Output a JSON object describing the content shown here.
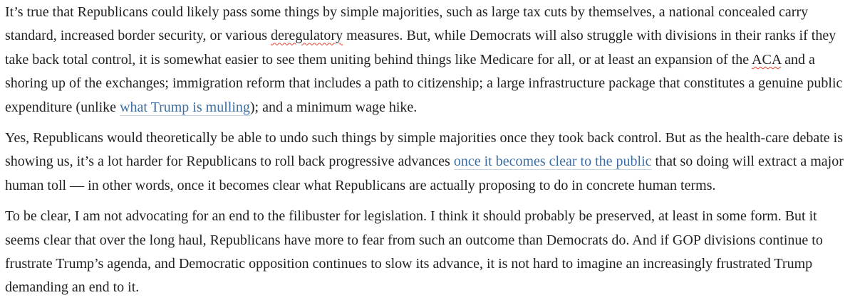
{
  "page": {
    "background_color": "#ffffff",
    "text_color": "#222222",
    "link_color": "#3b6da1",
    "link_underline_color": "#c3d4e2",
    "spellcheck_squiggle_color": "#e2402b"
  },
  "article": {
    "paragraphs": [
      {
        "segments": [
          {
            "type": "text",
            "text": "It’s true that Republicans could likely pass some things by simple majorities, such as large tax cuts by themselves, a national concealed carry standard, increased border security, or various "
          },
          {
            "type": "misspelled",
            "text": "deregulatory"
          },
          {
            "type": "text",
            "text": " measures. But, while Democrats will also struggle with divisions in their ranks if they take back total control, it is somewhat easier to see them uniting behind things like Medicare for all, or at least an expansion of the "
          },
          {
            "type": "misspelled",
            "text": "ACA"
          },
          {
            "type": "text",
            "text": " and a shoring up of the exchanges; immigration reform that includes a path to citizenship; a large infrastructure package that constitutes a genuine public expenditure (unlike "
          },
          {
            "type": "link",
            "text": "what Trump is mulling"
          },
          {
            "type": "text",
            "text": "); and a minimum wage hike."
          }
        ]
      },
      {
        "segments": [
          {
            "type": "text",
            "text": "Yes, Republicans would theoretically be able to undo such things by simple majorities once they took back control. But as the health-care debate is showing us, it’s a lot harder for Republicans to roll back progressive advances "
          },
          {
            "type": "link",
            "text": "once it becomes clear to the public"
          },
          {
            "type": "text",
            "text": " that so doing will extract a major human toll — in other words, once it becomes clear what Republicans are actually proposing to do in concrete human terms."
          }
        ]
      },
      {
        "segments": [
          {
            "type": "text",
            "text": "To be clear, I am not advocating for an end to the filibuster for legislation. I think it should probably be preserved, at least in some form. But it seems clear that over the long haul, Republicans have more to fear from such an outcome than Democrats do. And if GOP divisions continue to frustrate Trump’s agenda, and Democratic opposition continues to slow its advance, it is not hard to imagine an increasingly frustrated Trump demanding an end to it."
          }
        ]
      }
    ]
  }
}
